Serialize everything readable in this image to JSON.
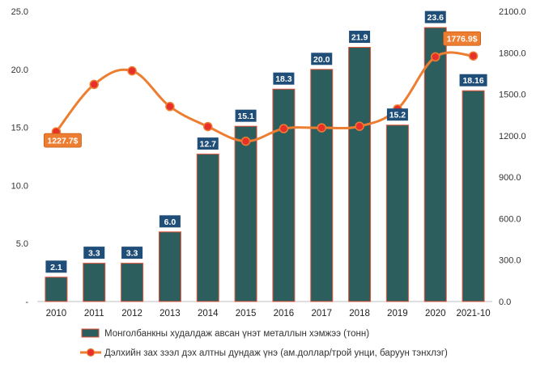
{
  "chart_data": {
    "type": "bar+line",
    "categories": [
      "2010",
      "2011",
      "2012",
      "2013",
      "2014",
      "2015",
      "2016",
      "2017",
      "2018",
      "2019",
      "2020",
      "2021-10"
    ],
    "y_left": {
      "ticks": [
        "-",
        "5.0",
        "10.0",
        "15.0",
        "20.0",
        "25.0"
      ],
      "ylim": [
        0,
        25
      ]
    },
    "y_right": {
      "ticks": [
        "0.0",
        "300.0",
        "600.0",
        "900.0",
        "1200.0",
        "1500.0",
        "1800.0",
        "2100.0"
      ],
      "ylim": [
        0,
        2100
      ]
    },
    "grid": false,
    "legend_position": "bottom",
    "series": [
      {
        "name": "Монголбанкны худалдаж авсан үнэт металлын хэмжээ (тонн)",
        "type": "bar",
        "axis": "left",
        "color": "#2d5e5e",
        "edge_color": "#e8553a",
        "values": [
          2.1,
          3.3,
          3.3,
          6.0,
          12.7,
          15.1,
          18.3,
          20.0,
          21.9,
          15.2,
          23.6,
          18.16
        ],
        "labels": [
          "2.1",
          "3.3",
          "3.3",
          "6.0",
          "12.7",
          "15.1",
          "18.3",
          "20.0",
          "21.9",
          "15.2",
          "23.6",
          "18.16"
        ],
        "label_color": "#1f4e79"
      },
      {
        "name": "Дэлхийн зах зээл дэх алтны дундаж үнэ (ам.доллар/трой унци, баруун тэнхлэг)",
        "type": "line",
        "axis": "right",
        "color": "#ed7d31",
        "marker_color": "#e8302a",
        "values": [
          1227.7,
          1571,
          1669,
          1411,
          1266,
          1160,
          1251,
          1257,
          1268,
          1393,
          1770,
          1776.9
        ]
      }
    ],
    "annotations": [
      {
        "series": 1,
        "index": 0,
        "text": "1227.7$"
      },
      {
        "series": 1,
        "index": 11,
        "text": "1776.9$"
      }
    ],
    "annotation_color": "#ed7d31"
  }
}
